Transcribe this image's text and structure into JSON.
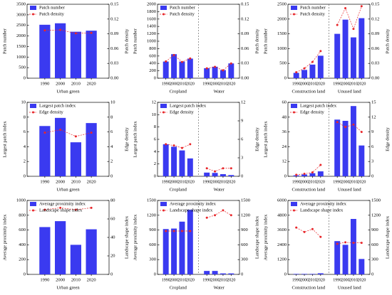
{
  "chart_data": [
    {
      "type": "bar",
      "groups": [
        "Urban green"
      ],
      "categories": [
        "1990",
        "2000",
        "2010",
        "2020"
      ],
      "ylabel": "Patch number",
      "y2label": "Patch density",
      "ylim": [
        0,
        3500
      ],
      "yticks": [
        0,
        500,
        1000,
        1500,
        2000,
        2500,
        3000,
        3500
      ],
      "y2lim": [
        0,
        0.15
      ],
      "y2ticks": [
        {
          "value": 0,
          "label": "0.00"
        },
        0.03,
        0.06,
        0.09,
        0.12,
        0.15
      ],
      "series": [
        {
          "name": "Patch number",
          "color": "#3a3af0",
          "values": [
            2530,
            2600,
            2200,
            2250
          ]
        },
        {
          "name": "Patch density",
          "color": "#e8262a",
          "axis": "y2",
          "values": [
            0.097,
            0.098,
            0.091,
            0.092
          ]
        }
      ]
    },
    {
      "type": "bar",
      "groups": [
        "Cropland",
        "Water"
      ],
      "categories": [
        "1990",
        "2000",
        "2010",
        "2020",
        "1990",
        "2000",
        "2010",
        "2020"
      ],
      "ylabel": "Patch number",
      "y2label": "Patch density",
      "ylim": [
        0,
        2000
      ],
      "yticks": [
        0,
        200,
        400,
        600,
        800,
        1000,
        1200,
        1400,
        1600,
        1800,
        2000
      ],
      "y2lim": [
        0,
        0.15
      ],
      "y2ticks": [
        {
          "value": 0,
          "label": "0.00"
        },
        0.03,
        0.06,
        0.09,
        0.12,
        0.15
      ],
      "series": [
        {
          "name": "Patch number",
          "color": "#3a3af0",
          "values": [
            450,
            650,
            450,
            530,
            270,
            310,
            220,
            400
          ]
        },
        {
          "name": "Patch density",
          "color": "#e8262a",
          "axis": "y2",
          "values": [
            0.034,
            0.047,
            0.033,
            0.04,
            0.02,
            0.023,
            0.016,
            0.03
          ]
        }
      ]
    },
    {
      "type": "bar",
      "groups": [
        "Construction land",
        "Unused land"
      ],
      "categories": [
        "1990",
        "2000",
        "2010",
        "2020",
        "1990",
        "2000",
        "2010",
        "2020"
      ],
      "ylabel": "Patch number",
      "y2label": "Patch density",
      "ylim": [
        0,
        2500
      ],
      "yticks": [
        0,
        500,
        1000,
        1500,
        2000,
        2500
      ],
      "y2lim": [
        0,
        0.15
      ],
      "y2ticks": [
        {
          "value": 0,
          "label": "0.00"
        },
        0.03,
        0.06,
        0.09,
        0.12,
        0.15
      ],
      "series": [
        {
          "name": "Patch number",
          "color": "#3a3af0",
          "values": [
            180,
            280,
            460,
            760,
            1500,
            1980,
            1380,
            2030
          ]
        },
        {
          "name": "Patch density",
          "color": "#e8262a",
          "axis": "y2",
          "values": [
            0.012,
            0.02,
            0.033,
            0.055,
            0.108,
            0.142,
            0.1,
            0.146
          ]
        }
      ]
    },
    {
      "type": "bar",
      "groups": [
        "Urban green"
      ],
      "categories": [
        "1990",
        "2000",
        "2010",
        "2020"
      ],
      "ylabel": "Largest patch index",
      "y2label": "Edge density",
      "ylim": [
        0,
        10
      ],
      "yticks": [
        0,
        2,
        4,
        6,
        8,
        10
      ],
      "y2lim": [
        0,
        10
      ],
      "y2ticks": [
        0,
        2,
        4,
        6,
        8,
        10
      ],
      "series": [
        {
          "name": "Largest patch index",
          "color": "#3a3af0",
          "values": [
            6.8,
            7.9,
            4.6,
            7.2
          ]
        },
        {
          "name": "Edge density",
          "color": "#e8262a",
          "axis": "y2",
          "values": [
            5.9,
            6.3,
            5.4,
            5.9
          ]
        }
      ]
    },
    {
      "type": "bar",
      "groups": [
        "Cropland",
        "Water"
      ],
      "categories": [
        "1990",
        "2000",
        "2010",
        "2020",
        "1990",
        "2000",
        "2010",
        "2020"
      ],
      "ylabel": "Largest patch index",
      "y2label": "Edge density",
      "ylim": [
        0,
        12
      ],
      "yticks": [
        0,
        2,
        4,
        6,
        8,
        10,
        12
      ],
      "y2lim": [
        0,
        12
      ],
      "y2ticks": [
        0,
        3,
        6,
        9,
        12
      ],
      "series": [
        {
          "name": "Largest patch index",
          "color": "#3a3af0",
          "values": [
            5.2,
            4.8,
            4.2,
            2.9,
            0.6,
            0.55,
            0.35,
            0.2
          ]
        },
        {
          "name": "Edge density",
          "color": "#e8262a",
          "axis": "y2",
          "values": [
            5.2,
            5,
            4.6,
            5.2,
            1.3,
            0.8,
            1.3,
            1.3
          ]
        }
      ]
    },
    {
      "type": "bar",
      "groups": [
        "Construction land",
        "Unused land"
      ],
      "categories": [
        "1990",
        "2000",
        "2010",
        "2020",
        "1990",
        "2000",
        "2010",
        "2020"
      ],
      "ylabel": "Largest patch index",
      "y2label": "Edge density",
      "ylim": [
        0,
        60
      ],
      "yticks": [
        0,
        12,
        24,
        36,
        48,
        60
      ],
      "y2lim": [
        0,
        15
      ],
      "y2ticks": [
        0,
        3,
        6,
        9,
        12,
        15
      ],
      "series": [
        {
          "name": "Largest patch index",
          "color": "#3a3af0",
          "values": [
            0.8,
            1.5,
            2.5,
            4,
            46,
            45,
            57,
            25
          ]
        },
        {
          "name": "Edge density",
          "color": "#e8262a",
          "axis": "y2",
          "values": [
            0.3,
            0.5,
            0.8,
            2.3,
            11,
            10,
            10.5,
            9
          ]
        }
      ]
    },
    {
      "type": "bar",
      "groups": [
        "Urban green"
      ],
      "categories": [
        "1990",
        "2000",
        "2010",
        "2020"
      ],
      "ylabel": "Average proximity index",
      "y2label": "Landscape shape index",
      "ylim": [
        0,
        1000
      ],
      "yticks": [
        0,
        200,
        400,
        600,
        800,
        1000
      ],
      "y2lim": [
        0,
        80
      ],
      "y2ticks": [
        0,
        20,
        40,
        60,
        80
      ],
      "series": [
        {
          "name": "Average proximity index",
          "color": "#3a3af0",
          "values": [
            640,
            720,
            400,
            610
          ]
        },
        {
          "name": "Landscape shape index",
          "color": "#e8262a",
          "axis": "y2",
          "values": [
            70,
            72,
            70,
            72
          ]
        }
      ]
    },
    {
      "type": "bar",
      "groups": [
        "Cropland",
        "Water"
      ],
      "categories": [
        "1990",
        "2000",
        "2010",
        "2020",
        "1990",
        "2000",
        "2010",
        "2020"
      ],
      "ylabel": "Average proximity index",
      "y2label": "Landscape shape index",
      "ylim": [
        0,
        1500
      ],
      "yticks": [
        0,
        300,
        600,
        900,
        1200,
        1500
      ],
      "y2lim": [
        0,
        1500
      ],
      "y2ticks": [
        0,
        300,
        600,
        900,
        1200,
        1500
      ],
      "series": [
        {
          "name": "Average proximity index",
          "color": "#3a3af0",
          "values": [
            920,
            930,
            1070,
            1310,
            70,
            70,
            20,
            20
          ]
        },
        {
          "name": "Landscape shape index",
          "color": "#e8262a",
          "axis": "y2",
          "values": [
            880,
            880,
            880,
            880,
            1150,
            1200,
            1300,
            1200
          ]
        }
      ]
    },
    {
      "type": "bar",
      "groups": [
        "Construction land",
        "Unused land"
      ],
      "categories": [
        "1990",
        "2000",
        "2010",
        "2020",
        "1990",
        "2000",
        "2010",
        "2020"
      ],
      "ylabel": "Average proximity index",
      "y2label": "Landscape shape index",
      "ylim": [
        0,
        6000
      ],
      "yticks": [
        0,
        1200,
        2400,
        3600,
        4800,
        6000
      ],
      "y2lim": [
        0,
        1500
      ],
      "y2ticks": [
        0,
        300,
        600,
        900,
        1200,
        1500
      ],
      "series": [
        {
          "name": "Average proximity index",
          "color": "#3a3af0",
          "values": [
            40,
            40,
            40,
            90,
            2700,
            2400,
            4500,
            1250
          ]
        },
        {
          "name": "Landscape shape index",
          "color": "#e8262a",
          "axis": "y2",
          "values": [
            950,
            860,
            920,
            760,
            620,
            650,
            640,
            640
          ]
        }
      ]
    }
  ]
}
